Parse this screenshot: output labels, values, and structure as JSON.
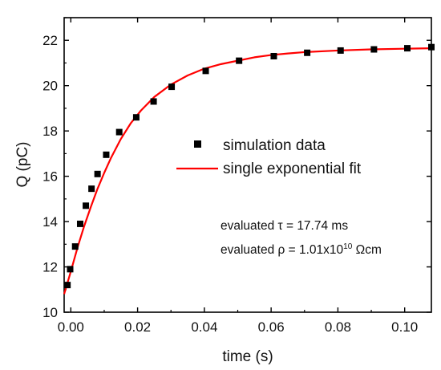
{
  "chart_data": {
    "type": "scatter",
    "xlabel": "time (s)",
    "ylabel": "Q (pC)",
    "xlim": [
      -0.002,
      0.108
    ],
    "ylim": [
      10,
      23
    ],
    "xticks": [
      "0.00",
      "0.02",
      "0.04",
      "0.06",
      "0.08",
      "0.10"
    ],
    "yticks": [
      "10",
      "12",
      "14",
      "16",
      "18",
      "20",
      "22"
    ],
    "grid": false,
    "legend_position": "right-center",
    "series": [
      {
        "name": "simulation data",
        "kind": "scatter",
        "marker": "square",
        "color": "#000000",
        "x": [
          -0.001,
          -0.0002,
          0.0013,
          0.0028,
          0.0045,
          0.0062,
          0.008,
          0.0106,
          0.0145,
          0.0196,
          0.0248,
          0.0302,
          0.0404,
          0.0504,
          0.0608,
          0.0708,
          0.0808,
          0.0908,
          0.1008,
          0.108
        ],
        "y": [
          11.2,
          11.9,
          12.9,
          13.9,
          14.7,
          15.45,
          16.1,
          16.95,
          17.95,
          18.6,
          19.3,
          19.95,
          20.65,
          21.1,
          21.3,
          21.45,
          21.55,
          21.6,
          21.65,
          21.7
        ]
      },
      {
        "name": "single exponential fit",
        "kind": "line",
        "color": "#ff0000",
        "x": [
          -0.002,
          0.0,
          0.002,
          0.004,
          0.006,
          0.008,
          0.01,
          0.012,
          0.015,
          0.018,
          0.021,
          0.025,
          0.03,
          0.035,
          0.04,
          0.045,
          0.05,
          0.055,
          0.06,
          0.065,
          0.07,
          0.08,
          0.09,
          0.1,
          0.108
        ],
        "y": [
          10.8,
          11.8,
          12.85,
          13.8,
          14.65,
          15.45,
          16.15,
          16.8,
          17.65,
          18.35,
          18.9,
          19.5,
          20.05,
          20.45,
          20.75,
          20.95,
          21.1,
          21.25,
          21.35,
          21.42,
          21.48,
          21.55,
          21.6,
          21.63,
          21.65
        ]
      }
    ]
  },
  "annotations": {
    "tau": "evaluated τ = 17.74 ms",
    "rho_prefix": "evaluated ρ = 1.01x10",
    "rho_exponent": "10",
    "rho_unit": " Ωcm"
  }
}
